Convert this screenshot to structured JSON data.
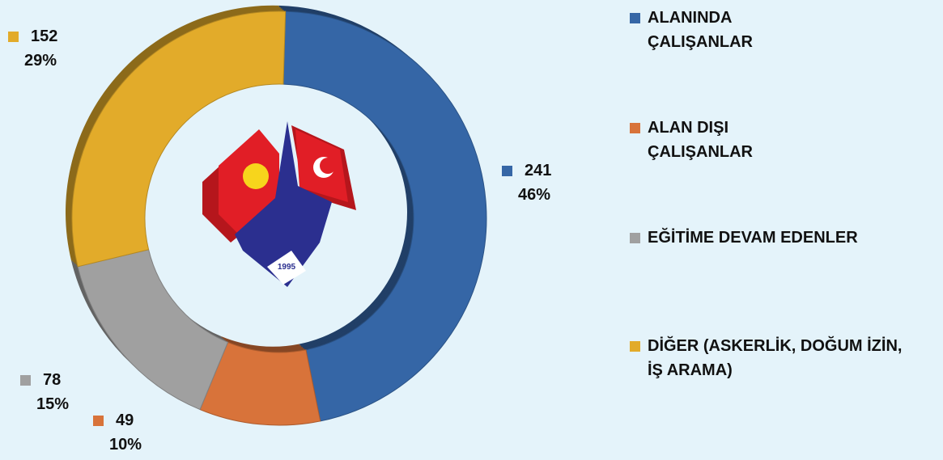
{
  "chart_data": {
    "type": "donut",
    "categories": [
      "ALANINDA\nÇALIŞANLAR",
      "ALAN DIŞI\nÇALIŞANLAR",
      "EĞİTİME DEVAM EDENLER",
      "DİĞER (ASKERLİK, DOĞUM İZİN,\nİŞ ARAMA)"
    ],
    "values": [
      241,
      49,
      78,
      152
    ],
    "percent_labels": [
      "46%",
      "10%",
      "15%",
      "29%"
    ],
    "colors": [
      "#3566a6",
      "#d8733a",
      "#a0a0a0",
      "#e2ab2a"
    ],
    "logo_year": "1995"
  }
}
